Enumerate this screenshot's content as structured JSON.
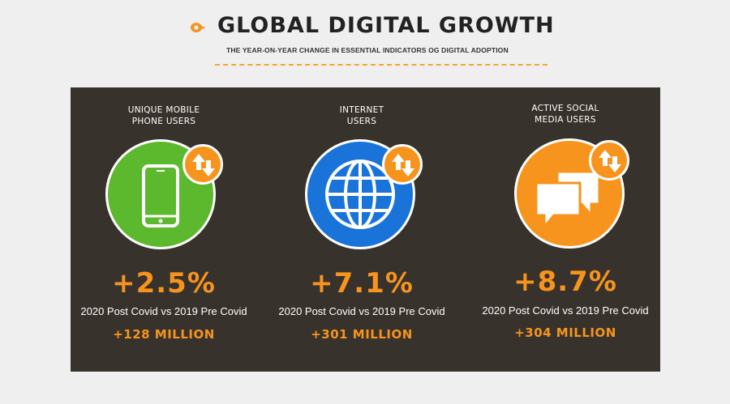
{
  "header": {
    "title": "GLOBAL DIGITAL GROWTH",
    "subtitle": "THE YEAR-ON-YEAR CHANGE IN ESSENTIAL INDICATORS OG DIGITAL ADOPTION"
  },
  "colors": {
    "accent": "#f7941d",
    "panel": "#38322c",
    "mobile": "#5cb82d",
    "internet": "#1a73d9",
    "social": "#f7941d"
  },
  "stats": [
    {
      "label_line1": "UNIQUE MOBILE",
      "label_line2": "PHONE USERS",
      "icon": "mobile-phone-icon",
      "percent": "+2.5%",
      "caption": "2020 Post Covid vs 2019 Pre Covid",
      "absolute": "+128 MILLION"
    },
    {
      "label_line1": "INTERNET",
      "label_line2": "USERS",
      "icon": "globe-icon",
      "percent": "+7.1%",
      "caption": "2020 Post Covid vs 2019 Pre Covid",
      "absolute": "+301 MILLION"
    },
    {
      "label_line1": "ACTIVE SOCIAL",
      "label_line2": "MEDIA USERS",
      "icon": "chat-bubbles-icon",
      "percent": "+8.7%",
      "caption": "2020 Post Covid vs 2019 Pre Covid",
      "absolute": "+304 MILLION"
    }
  ]
}
